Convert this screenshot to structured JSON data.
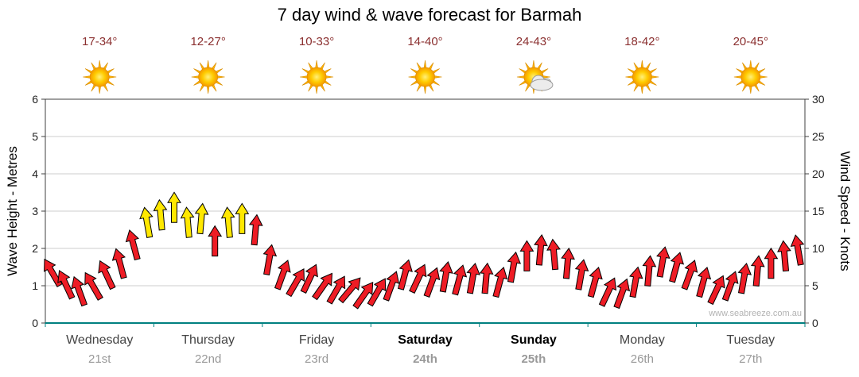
{
  "title": "7 day wind & wave forecast for Barmah",
  "watermark": "www.seabreeze.com.au",
  "forecast_days": [
    {
      "name": "Wednesday",
      "date": "21st",
      "temp": "17-34°",
      "icon": "sunny",
      "weekend": false
    },
    {
      "name": "Thursday",
      "date": "22nd",
      "temp": "12-27°",
      "icon": "sunny",
      "weekend": false
    },
    {
      "name": "Friday",
      "date": "23rd",
      "temp": "10-33°",
      "icon": "sunny",
      "weekend": false
    },
    {
      "name": "Saturday",
      "date": "24th",
      "temp": "14-40°",
      "icon": "sunny",
      "weekend": true
    },
    {
      "name": "Sunday",
      "date": "25th",
      "temp": "24-43°",
      "icon": "partly-cloudy",
      "weekend": true
    },
    {
      "name": "Monday",
      "date": "26th",
      "temp": "18-42°",
      "icon": "sunny",
      "weekend": false
    },
    {
      "name": "Tuesday",
      "date": "27th",
      "temp": "20-45°",
      "icon": "sunny",
      "weekend": false
    }
  ],
  "axes": {
    "left_label": "Wave Height - Metres",
    "right_label": "Wind Speed - Knots",
    "left_ticks": [
      0,
      1,
      2,
      3,
      4,
      5,
      6
    ],
    "right_ticks": [
      0,
      5,
      10,
      15,
      20,
      25,
      30
    ]
  },
  "chart_data": {
    "type": "scatter",
    "marker": "wind-arrow",
    "title": "7 day wind & wave forecast for Barmah",
    "xlabel": "",
    "ylabel_left": "Wave Height - Metres",
    "ylabel_right": "Wind Speed - Knots",
    "ylim_metres": [
      0,
      6
    ],
    "ylim_knots": [
      0,
      30
    ],
    "grid": "horizontal",
    "legend": "none",
    "days": [
      "Wednesday 21st",
      "Thursday 22nd",
      "Friday 23rd",
      "Saturday 24th",
      "Sunday 25th",
      "Monday 26th",
      "Tuesday 27th"
    ],
    "series_name": "wind_speed_knots",
    "time_step_hours": 3,
    "knots": [
      6.8,
      5.2,
      4.3,
      5.0,
      6.5,
      8.0,
      10.5,
      13.5,
      14.5,
      15.5,
      13.5,
      14.0,
      11.0,
      13.5,
      14.0,
      12.5,
      8.5,
      6.5,
      5.5,
      6.0,
      5.0,
      4.5,
      4.5,
      3.8,
      4.2,
      5.0,
      6.5,
      6.0,
      5.5,
      6.2,
      5.8,
      6.0,
      6.0,
      5.5,
      7.5,
      9.0,
      9.8,
      9.2,
      8.0,
      6.5,
      5.5,
      4.2,
      4.0,
      5.5,
      7.0,
      8.2,
      7.5,
      6.5,
      5.5,
      4.5,
      5.0,
      6.0,
      7.0,
      8.0,
      9.0,
      9.8
    ],
    "dir_deg": [
      -30,
      -25,
      -20,
      -30,
      -25,
      -15,
      -15,
      -10,
      -5,
      0,
      -5,
      5,
      0,
      -5,
      0,
      5,
      10,
      20,
      30,
      25,
      35,
      30,
      40,
      35,
      30,
      20,
      15,
      25,
      20,
      10,
      15,
      10,
      5,
      15,
      10,
      0,
      5,
      -5,
      5,
      10,
      15,
      25,
      20,
      10,
      5,
      10,
      15,
      20,
      15,
      25,
      20,
      10,
      5,
      0,
      -5,
      -10
    ],
    "color": [
      "red",
      "red",
      "red",
      "red",
      "red",
      "red",
      "red",
      "yellow",
      "yellow",
      "yellow",
      "yellow",
      "yellow",
      "red",
      "yellow",
      "yellow",
      "red",
      "red",
      "red",
      "red",
      "red",
      "red",
      "red",
      "red",
      "red",
      "red",
      "red",
      "red",
      "red",
      "red",
      "red",
      "red",
      "red",
      "red",
      "red",
      "red",
      "red",
      "red",
      "red",
      "red",
      "red",
      "red",
      "red",
      "red",
      "red",
      "red",
      "red",
      "red",
      "red",
      "red",
      "red",
      "red",
      "red",
      "red",
      "red",
      "red",
      "red"
    ]
  },
  "colors": {
    "arrow_red": "#ee1c25",
    "arrow_yellow": "#ffe800",
    "arrow_outline": "#000000",
    "grid": "#cccccc",
    "axis": "#404040",
    "bottom_axis": "#008080",
    "tick_text": "#222222",
    "temp_text": "#8b3030",
    "day_text": "#444444",
    "day_text_weekend": "#000000",
    "date_text": "#999999",
    "watermark_text": "#b3b3b3",
    "sun_ray": "#ffb300",
    "sun_ray_edge": "#d98d00",
    "sun_edge": "#e09000",
    "cloud_fill": "#ececec",
    "cloud_edge": "#9a9a9a"
  }
}
